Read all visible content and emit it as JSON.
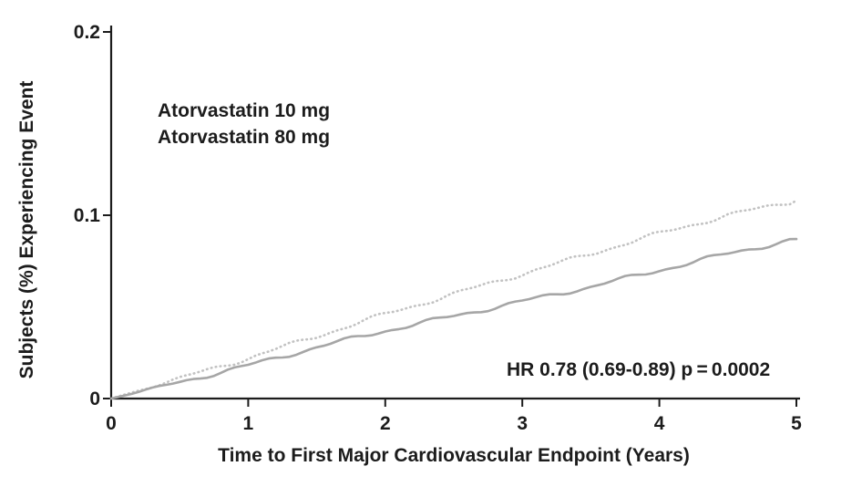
{
  "chart_data": {
    "type": "line",
    "title": "",
    "xlabel": "Time to First Major Cardiovascular Endpoint (Years)",
    "ylabel": "Subjects (%) Experiencing Event",
    "xlim": [
      0,
      5
    ],
    "ylim": [
      0,
      0.2
    ],
    "x_ticks": [
      0,
      1,
      2,
      3,
      4,
      5
    ],
    "x_tick_labels": [
      "0",
      "1",
      "2",
      "3",
      "4",
      "5"
    ],
    "y_ticks": [
      0,
      0.1,
      0.2
    ],
    "y_tick_labels": [
      "0",
      "0.1",
      "0.2"
    ],
    "grid": false,
    "legend_position": "upper-left-inside",
    "annotation": "HR 0.78 (0.69-0.89)  p = 0.0002",
    "legend": [
      {
        "label": "Atorvastatin 10 mg"
      },
      {
        "label": "Atorvastatin 80 mg"
      }
    ],
    "series": [
      {
        "name": "Atorvastatin 10 mg",
        "style": "dotted",
        "color": "#c2c2c2",
        "x": [
          0,
          0.5,
          1,
          1.5,
          2,
          2.5,
          3,
          3.5,
          4,
          4.5,
          5
        ],
        "y": [
          0,
          0.011,
          0.022,
          0.034,
          0.046,
          0.057,
          0.068,
          0.079,
          0.09,
          0.1,
          0.108
        ]
      },
      {
        "name": "Atorvastatin 80 mg",
        "style": "solid",
        "color": "#a6a6a6",
        "x": [
          0,
          0.5,
          1,
          1.5,
          2,
          2.5,
          3,
          3.5,
          4,
          4.5,
          5
        ],
        "y": [
          0,
          0.009,
          0.018,
          0.028,
          0.037,
          0.045,
          0.053,
          0.061,
          0.07,
          0.079,
          0.087
        ]
      }
    ]
  }
}
